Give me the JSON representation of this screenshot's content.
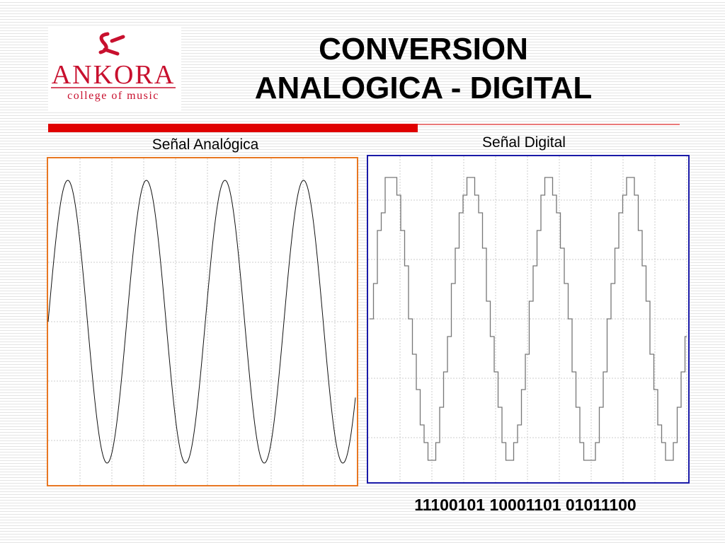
{
  "logo": {
    "name": "ANKORA",
    "subtitle": "college of music"
  },
  "title": {
    "line1": "CONVERSION",
    "line2": "ANALOGICA - DIGITAL"
  },
  "panels": {
    "analog": {
      "label": "Señal Analógica"
    },
    "digital": {
      "label": "Señal Digital"
    }
  },
  "binary": "11100101 10001101 01011100"
}
